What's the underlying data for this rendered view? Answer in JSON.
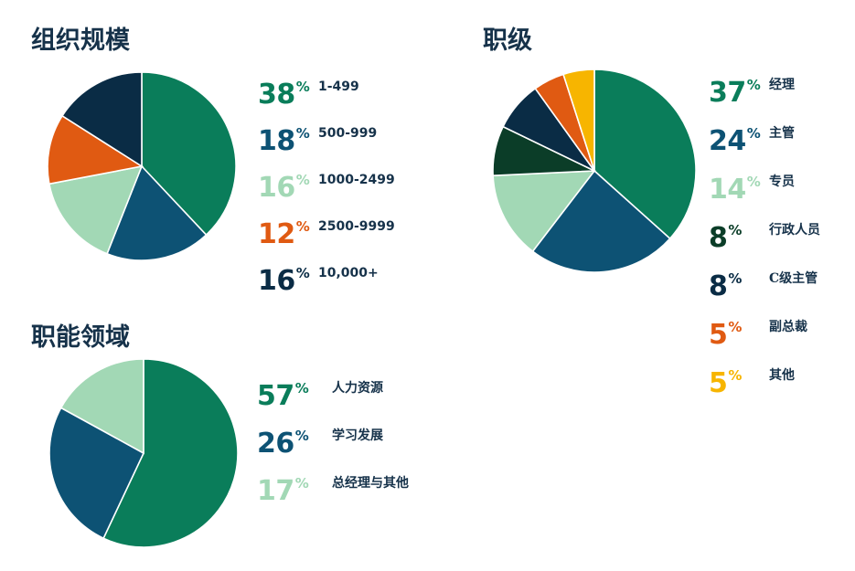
{
  "colors": {
    "green": "#0a7d5a",
    "blue": "#0d5274",
    "light_green": "#a2d8b5",
    "orange": "#e05a12",
    "navy": "#0a2c45",
    "dark_green": "#0b3d28",
    "yellow": "#f7b500",
    "title": "#16324a"
  },
  "chart_data": [
    {
      "type": "pie",
      "title": "组织规模",
      "series": [
        {
          "label": "1-499",
          "pct": "38",
          "sign": "%",
          "value": 38,
          "color": "#0a7d5a"
        },
        {
          "label": "500-999",
          "pct": "18",
          "sign": "%",
          "value": 18,
          "color": "#0d5274"
        },
        {
          "label": "1000-2499",
          "pct": "16",
          "sign": "%",
          "value": 16,
          "color": "#a2d8b5"
        },
        {
          "label": "2500-9999",
          "pct": "12",
          "sign": "%",
          "value": 12,
          "color": "#e05a12"
        },
        {
          "label": "10,000+",
          "pct": "16",
          "sign": "%",
          "value": 16,
          "color": "#0a2c45"
        }
      ]
    },
    {
      "type": "pie",
      "title": "职级",
      "series": [
        {
          "label": "经理",
          "pct": "37",
          "sign": "%",
          "value": 37,
          "color": "#0a7d5a"
        },
        {
          "label": "主管",
          "pct": "24",
          "sign": "%",
          "value": 24,
          "color": "#0d5274"
        },
        {
          "label": "专员",
          "pct": "14",
          "sign": "%",
          "value": 14,
          "color": "#a2d8b5"
        },
        {
          "label": "行政人员",
          "pct": "8",
          "sign": "%",
          "value": 8,
          "color": "#0b3d28"
        },
        {
          "label": "C级主管",
          "pct": "8",
          "sign": "%",
          "value": 8,
          "color": "#0a2c45"
        },
        {
          "label": "副总裁",
          "pct": "5",
          "sign": "%",
          "value": 5,
          "color": "#e05a12"
        },
        {
          "label": "其他",
          "pct": "5",
          "sign": "%",
          "value": 5,
          "color": "#f7b500"
        }
      ]
    },
    {
      "type": "pie",
      "title": "职能领域",
      "series": [
        {
          "label": "人力资源",
          "pct": "57",
          "sign": "%",
          "value": 57,
          "color": "#0a7d5a"
        },
        {
          "label": "学习发展",
          "pct": "26",
          "sign": "%",
          "value": 26,
          "color": "#0d5274"
        },
        {
          "label": "总经理与其他",
          "pct": "17",
          "sign": "%",
          "value": 17,
          "color": "#a2d8b5"
        }
      ]
    }
  ]
}
